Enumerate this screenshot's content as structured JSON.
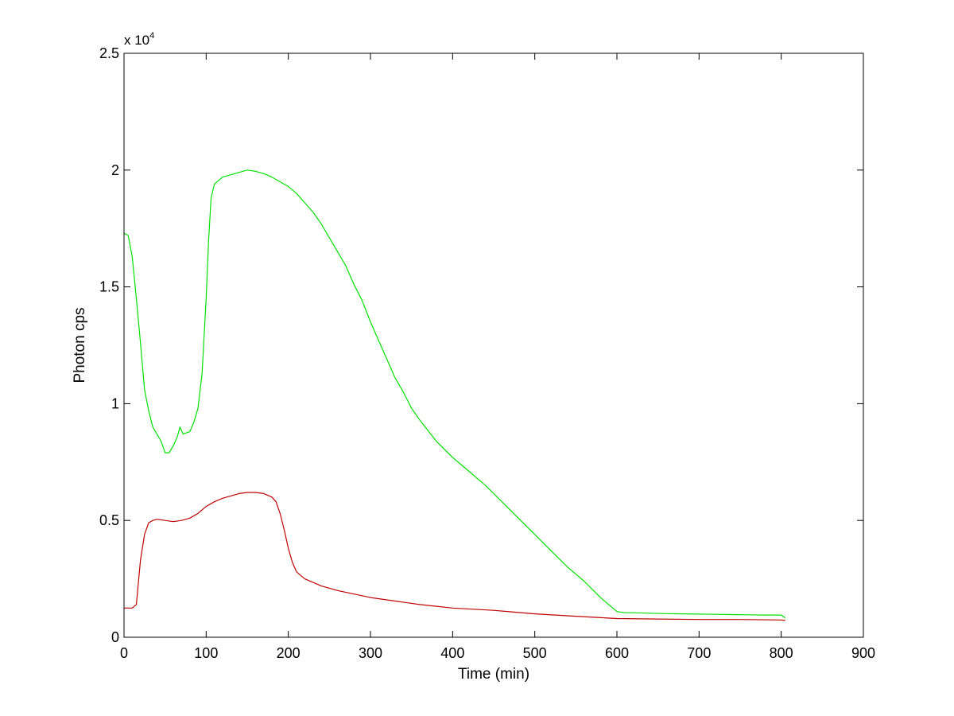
{
  "chart_data": {
    "type": "line",
    "title": "",
    "xlabel": "Time (min)",
    "ylabel": "Photon cps",
    "y_multiplier": {
      "base": "x 10",
      "exponent": "4"
    },
    "xlim": [
      0,
      900
    ],
    "ylim": [
      0,
      25000
    ],
    "x_ticks": [
      0,
      100,
      200,
      300,
      400,
      500,
      600,
      700,
      800,
      900
    ],
    "x_tick_labels": [
      "0",
      "100",
      "200",
      "300",
      "400",
      "500",
      "600",
      "700",
      "800",
      "900"
    ],
    "y_ticks": [
      0,
      5000,
      10000,
      15000,
      20000,
      25000
    ],
    "y_tick_labels": [
      "0",
      "0.5",
      "1",
      "1.5",
      "2",
      "2.5"
    ],
    "grid": false,
    "series": [
      {
        "color": "#00e000",
        "x": [
          0,
          5,
          10,
          15,
          20,
          25,
          30,
          35,
          40,
          45,
          50,
          55,
          60,
          65,
          68,
          72,
          80,
          85,
          90,
          95,
          100,
          103,
          106,
          110,
          120,
          130,
          140,
          150,
          160,
          170,
          180,
          190,
          200,
          210,
          220,
          230,
          240,
          250,
          260,
          270,
          280,
          290,
          300,
          310,
          320,
          330,
          340,
          350,
          360,
          380,
          400,
          420,
          440,
          460,
          480,
          500,
          520,
          540,
          560,
          580,
          600,
          610,
          620,
          640,
          660,
          680,
          700,
          720,
          740,
          760,
          780,
          800,
          805
        ],
        "y": [
          17300,
          17200,
          16300,
          14500,
          12600,
          10600,
          9700,
          9000,
          8700,
          8400,
          7900,
          7900,
          8200,
          8600,
          9000,
          8700,
          8800,
          9200,
          9800,
          11300,
          14500,
          17000,
          18800,
          19400,
          19700,
          19800,
          19900,
          20000,
          19950,
          19850,
          19700,
          19500,
          19300,
          19000,
          18600,
          18200,
          17700,
          17100,
          16500,
          15900,
          15100,
          14400,
          13500,
          12700,
          11900,
          11100,
          10500,
          9800,
          9300,
          8400,
          7700,
          7100,
          6500,
          5800,
          5100,
          4400,
          3700,
          3000,
          2400,
          1700,
          1100,
          1050,
          1050,
          1030,
          1010,
          1000,
          990,
          980,
          970,
          960,
          950,
          950,
          830
        ]
      },
      {
        "color": "#c00000",
        "x": [
          0,
          10,
          15,
          20,
          25,
          30,
          35,
          40,
          50,
          60,
          70,
          80,
          90,
          100,
          110,
          120,
          130,
          140,
          150,
          160,
          170,
          180,
          185,
          190,
          195,
          200,
          205,
          210,
          220,
          240,
          260,
          280,
          300,
          330,
          360,
          400,
          450,
          500,
          550,
          600,
          650,
          700,
          750,
          800,
          805
        ],
        "y": [
          1250,
          1250,
          1400,
          3300,
          4400,
          4900,
          5000,
          5050,
          5000,
          4950,
          5000,
          5100,
          5300,
          5600,
          5800,
          5950,
          6050,
          6150,
          6200,
          6200,
          6150,
          6000,
          5800,
          5300,
          4600,
          3800,
          3200,
          2800,
          2500,
          2200,
          2000,
          1850,
          1700,
          1550,
          1400,
          1250,
          1150,
          1000,
          900,
          800,
          780,
          760,
          760,
          740,
          720
        ]
      }
    ]
  }
}
